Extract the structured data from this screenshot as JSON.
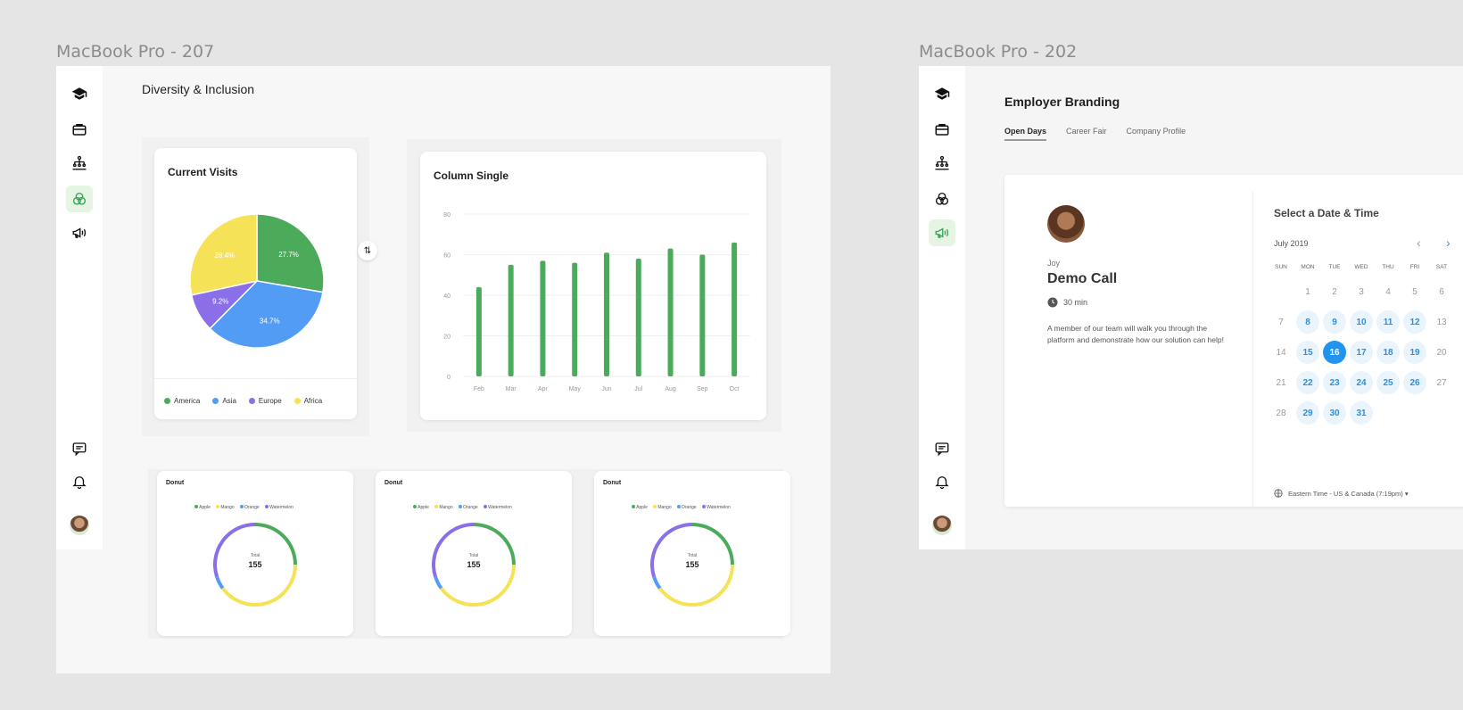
{
  "frames": {
    "left": {
      "label": "MacBook Pro - 207"
    },
    "right": {
      "label": "MacBook Pro - 202"
    }
  },
  "left": {
    "page_title": "Diversity & Inclusion",
    "nav_icons": [
      "graduation-cap-icon",
      "briefcase-icon",
      "org-chart-icon",
      "venn-circles-icon",
      "megaphone-icon",
      "chat-icon",
      "bell-icon"
    ],
    "active_nav": "venn-circles-icon",
    "current_visits": {
      "title": "Current Visits",
      "legend": [
        "America",
        "Asia",
        "Europe",
        "Africa"
      ]
    },
    "column_single": {
      "title": "Column Single"
    },
    "donuts": [
      {
        "title": "Donut",
        "total_label": "Total",
        "total_value": "155",
        "legend": [
          "Apple",
          "Mango",
          "Orange",
          "Watermelon"
        ]
      },
      {
        "title": "Donut",
        "total_label": "Total",
        "total_value": "155",
        "legend": [
          "Apple",
          "Mango",
          "Orange",
          "Watermelon"
        ]
      },
      {
        "title": "Donut",
        "total_label": "Total",
        "total_value": "155",
        "legend": [
          "Apple",
          "Mango",
          "Orange",
          "Watermelon"
        ]
      }
    ]
  },
  "right": {
    "page_title": "Employer Branding",
    "tabs": [
      "Open Days",
      "Career Fair",
      "Company Profile"
    ],
    "active_tab": "Open Days",
    "host_name": "Joy",
    "event_title": "Demo Call",
    "duration": "30 min",
    "description": "A member of our team will walk you through the platform and demonstrate how our solution can help!",
    "picker_title": "Select a Date & Time",
    "month": "July 2019",
    "prev_arrow": "‹",
    "next_arrow": "›",
    "weekdays": [
      "SUN",
      "MON",
      "TUE",
      "WED",
      "THU",
      "FRI",
      "SAT"
    ],
    "weeks": [
      [
        "",
        "1",
        "2",
        "3",
        "4",
        "5",
        "6"
      ],
      [
        "7",
        "8",
        "9",
        "10",
        "11",
        "12",
        "13"
      ],
      [
        "14",
        "15",
        "16",
        "17",
        "18",
        "19",
        "20"
      ],
      [
        "21",
        "22",
        "23",
        "24",
        "25",
        "26",
        "27"
      ],
      [
        "28",
        "29",
        "30",
        "31",
        "",
        "",
        ""
      ]
    ],
    "available_days": [
      "8",
      "9",
      "10",
      "11",
      "12",
      "15",
      "16",
      "17",
      "18",
      "19",
      "22",
      "23",
      "24",
      "25",
      "26",
      "29",
      "30",
      "31"
    ],
    "selected_day": "16",
    "timezone": "Eastern Time - US & Canada (7:19pm) ▾"
  },
  "colors": {
    "green": "#4caa5b",
    "blue": "#539cf5",
    "purple": "#8a6fe9",
    "yellow": "#f6e257",
    "accent_blue": "#2094ee"
  },
  "chart_data": [
    {
      "type": "pie",
      "title": "Current Visits",
      "categories": [
        "America",
        "Asia",
        "Europe",
        "Africa"
      ],
      "values": [
        27.7,
        34.7,
        9.2,
        28.4
      ],
      "value_labels": [
        "27.7%",
        "34.7%",
        "9.2%",
        "28.4%"
      ],
      "colors": [
        "#4caa5b",
        "#539cf5",
        "#8a6fe9",
        "#f6e257"
      ],
      "legend": "bottom"
    },
    {
      "type": "bar",
      "title": "Column Single",
      "categories": [
        "Feb",
        "Mar",
        "Apr",
        "May",
        "Jun",
        "Jul",
        "Aug",
        "Sep",
        "Oct"
      ],
      "values": [
        44,
        55,
        57,
        56,
        61,
        58,
        63,
        60,
        66
      ],
      "ylim": [
        0,
        80
      ],
      "yticks": [
        0,
        20,
        40,
        60,
        80
      ],
      "grid": true,
      "color": "#4caa5b"
    },
    {
      "type": "pie",
      "title": "Donut",
      "categories": [
        "Apple",
        "Mango",
        "Orange",
        "Watermelon"
      ],
      "values": [
        25,
        40,
        5,
        30
      ],
      "colors": [
        "#4caa5b",
        "#f6e257",
        "#539cf5",
        "#8a6fe9"
      ],
      "legend": "top"
    },
    {
      "type": "pie",
      "title": "Donut",
      "categories": [
        "Apple",
        "Mango",
        "Orange",
        "Watermelon"
      ],
      "values": [
        25,
        40,
        5,
        30
      ],
      "colors": [
        "#4caa5b",
        "#f6e257",
        "#539cf5",
        "#8a6fe9"
      ],
      "legend": "top"
    },
    {
      "type": "pie",
      "title": "Donut",
      "categories": [
        "Apple",
        "Mango",
        "Orange",
        "Watermelon"
      ],
      "values": [
        25,
        40,
        5,
        30
      ],
      "colors": [
        "#4caa5b",
        "#f6e257",
        "#539cf5",
        "#8a6fe9"
      ],
      "legend": "top"
    }
  ]
}
